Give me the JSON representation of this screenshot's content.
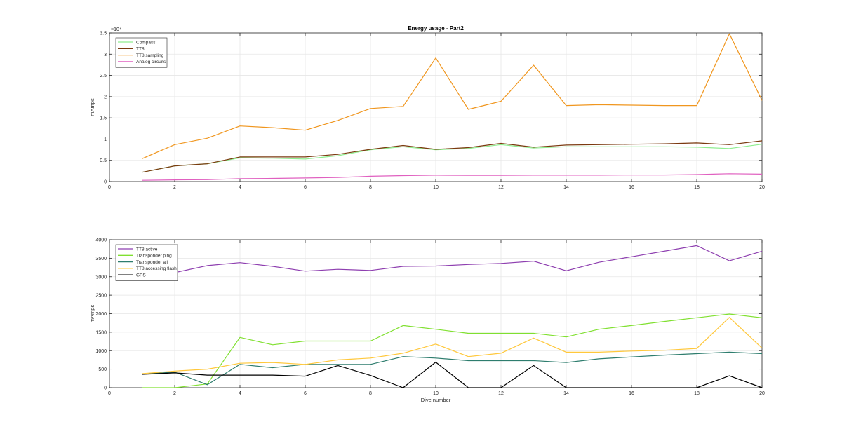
{
  "chart_data": [
    {
      "type": "line",
      "title": "Energy usage - Part2",
      "xlabel": "",
      "ylabel": "mAmps",
      "exponent_label": "×10⁴",
      "xlim": [
        0,
        20
      ],
      "ylim": [
        0,
        35000
      ],
      "xticks": [
        0,
        2,
        4,
        6,
        8,
        10,
        12,
        14,
        16,
        18,
        20
      ],
      "yticks": [
        0,
        5000,
        10000,
        15000,
        20000,
        25000,
        30000,
        35000
      ],
      "ytick_labels": [
        "0",
        "0.5",
        "1",
        "1.5",
        "2",
        "2.5",
        "3",
        "3.5"
      ],
      "grid": true,
      "legend_position": "top-left",
      "x": [
        1,
        2,
        3,
        4,
        5,
        6,
        7,
        8,
        9,
        10,
        11,
        12,
        13,
        14,
        15,
        16,
        17,
        18,
        19,
        20
      ],
      "series": [
        {
          "name": "Compass",
          "color": "#90ee90",
          "values": [
            2200,
            3700,
            4200,
            5600,
            5500,
            5300,
            6100,
            7500,
            8200,
            7500,
            7800,
            8700,
            7900,
            8200,
            8200,
            8200,
            8200,
            8100,
            7800,
            8800
          ]
        },
        {
          "name": "TT8",
          "color": "#7b3a10",
          "values": [
            2200,
            3700,
            4200,
            5800,
            5800,
            5800,
            6400,
            7600,
            8500,
            7600,
            8000,
            9000,
            8100,
            8600,
            8700,
            8800,
            8900,
            9100,
            8700,
            9600
          ]
        },
        {
          "name": "TT8 sampling",
          "color": "#f0961e",
          "values": [
            5400,
            8700,
            10200,
            13100,
            12700,
            12100,
            14400,
            17200,
            17700,
            29100,
            17000,
            18900,
            27400,
            17900,
            18100,
            18000,
            17900,
            17900,
            34800,
            19100
          ]
        },
        {
          "name": "Analog circuits",
          "color": "#e060c0",
          "values": [
            300,
            400,
            450,
            700,
            750,
            850,
            950,
            1250,
            1400,
            1500,
            1450,
            1450,
            1500,
            1500,
            1500,
            1550,
            1550,
            1650,
            1850,
            1750
          ]
        }
      ]
    },
    {
      "type": "line",
      "title": "",
      "xlabel": "Dive number",
      "ylabel": "mAmps",
      "xlim": [
        0,
        20
      ],
      "ylim": [
        0,
        4000
      ],
      "xticks": [
        0,
        2,
        4,
        6,
        8,
        10,
        12,
        14,
        16,
        18,
        20
      ],
      "yticks": [
        0,
        500,
        1000,
        1500,
        2000,
        2500,
        3000,
        3500,
        4000
      ],
      "ytick_labels": [
        "0",
        "500",
        "1000",
        "1500",
        "2000",
        "2500",
        "3000",
        "3500",
        "4000"
      ],
      "grid": true,
      "legend_position": "top-left",
      "x": [
        1,
        2,
        3,
        4,
        5,
        6,
        7,
        8,
        9,
        10,
        11,
        12,
        13,
        14,
        15,
        16,
        17,
        18,
        19,
        20
      ],
      "series": [
        {
          "name": "TT8 active",
          "color": "#8e3fb0",
          "values": [
            2920,
            3110,
            3300,
            3380,
            3280,
            3150,
            3200,
            3170,
            3280,
            3290,
            3330,
            3360,
            3420,
            3160,
            3390,
            3540,
            3690,
            3840,
            3430,
            3690
          ]
        },
        {
          "name": "Transponder ping",
          "color": "#80e030",
          "values": [
            0,
            0,
            100,
            1360,
            1160,
            1260,
            1260,
            1260,
            1680,
            1580,
            1470,
            1470,
            1470,
            1370,
            1580,
            1680,
            1790,
            1890,
            1990,
            1890
          ]
        },
        {
          "name": "Transponder all",
          "color": "#2e7d6e",
          "values": [
            370,
            420,
            80,
            630,
            540,
            630,
            630,
            630,
            840,
            800,
            730,
            730,
            730,
            680,
            780,
            830,
            880,
            920,
            960,
            920
          ]
        },
        {
          "name": "TT8 accessing flash",
          "color": "#ffc83c",
          "values": [
            380,
            450,
            500,
            660,
            680,
            630,
            750,
            800,
            930,
            1180,
            840,
            930,
            1340,
            960,
            960,
            990,
            1010,
            1060,
            1900,
            1070
          ]
        },
        {
          "name": "GPS",
          "color": "#000000",
          "values": [
            360,
            400,
            340,
            340,
            340,
            310,
            600,
            330,
            0,
            690,
            0,
            0,
            600,
            0,
            0,
            0,
            0,
            0,
            320,
            0
          ]
        }
      ]
    }
  ]
}
